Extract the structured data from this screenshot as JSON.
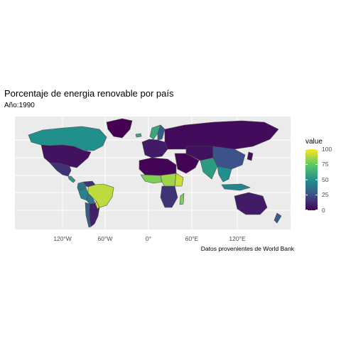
{
  "title": "Porcentaje de energia renovable por país",
  "subtitle": "Año:1990",
  "caption": "Datos provenientes de World Bank",
  "x_ticks": [
    "120°W",
    "60°W",
    "0°",
    "60°E",
    "120°E"
  ],
  "legend": {
    "title": "value",
    "ticks": [
      "100",
      "75",
      "50",
      "25",
      "0"
    ]
  },
  "colors": {
    "panel_background": "#ebebeb",
    "grid": "#ffffff",
    "border": "#4d4d4d",
    "scale": [
      "#440154",
      "#3b528b",
      "#21908c",
      "#5dc863",
      "#fde725"
    ]
  },
  "chart_data": {
    "type": "choropleth",
    "variable": "value",
    "year": 1990,
    "scale_range": [
      0,
      100
    ],
    "regions": [
      {
        "name": "Canada",
        "value": 50
      },
      {
        "name": "United States",
        "value": 5
      },
      {
        "name": "Mexico",
        "value": 15
      },
      {
        "name": "Central America",
        "value": 55
      },
      {
        "name": "Colombia",
        "value": 40
      },
      {
        "name": "Venezuela",
        "value": 15
      },
      {
        "name": "Brazil",
        "value": 90
      },
      {
        "name": "Peru",
        "value": 45
      },
      {
        "name": "Bolivia",
        "value": 40
      },
      {
        "name": "Paraguay",
        "value": 95
      },
      {
        "name": "Argentina",
        "value": 10
      },
      {
        "name": "Chile",
        "value": 30
      },
      {
        "name": "Greenland",
        "value": 0
      },
      {
        "name": "Iceland",
        "value": 60
      },
      {
        "name": "Norway",
        "value": 60
      },
      {
        "name": "Sweden",
        "value": 30
      },
      {
        "name": "Western Europe",
        "value": 8
      },
      {
        "name": "Russia",
        "value": 3
      },
      {
        "name": "North Africa",
        "value": 1
      },
      {
        "name": "West Africa",
        "value": 80
      },
      {
        "name": "Central Africa",
        "value": 85
      },
      {
        "name": "East Africa",
        "value": 92
      },
      {
        "name": "Southern Africa",
        "value": 15
      },
      {
        "name": "Madagascar",
        "value": 80
      },
      {
        "name": "Middle East",
        "value": 1
      },
      {
        "name": "Central Asia",
        "value": 5
      },
      {
        "name": "India",
        "value": 55
      },
      {
        "name": "China",
        "value": 25
      },
      {
        "name": "Southeast Asia",
        "value": 50
      },
      {
        "name": "Indonesia",
        "value": 45
      },
      {
        "name": "Japan",
        "value": 5
      },
      {
        "name": "Australia",
        "value": 8
      },
      {
        "name": "New Zealand",
        "value": 30
      }
    ]
  }
}
